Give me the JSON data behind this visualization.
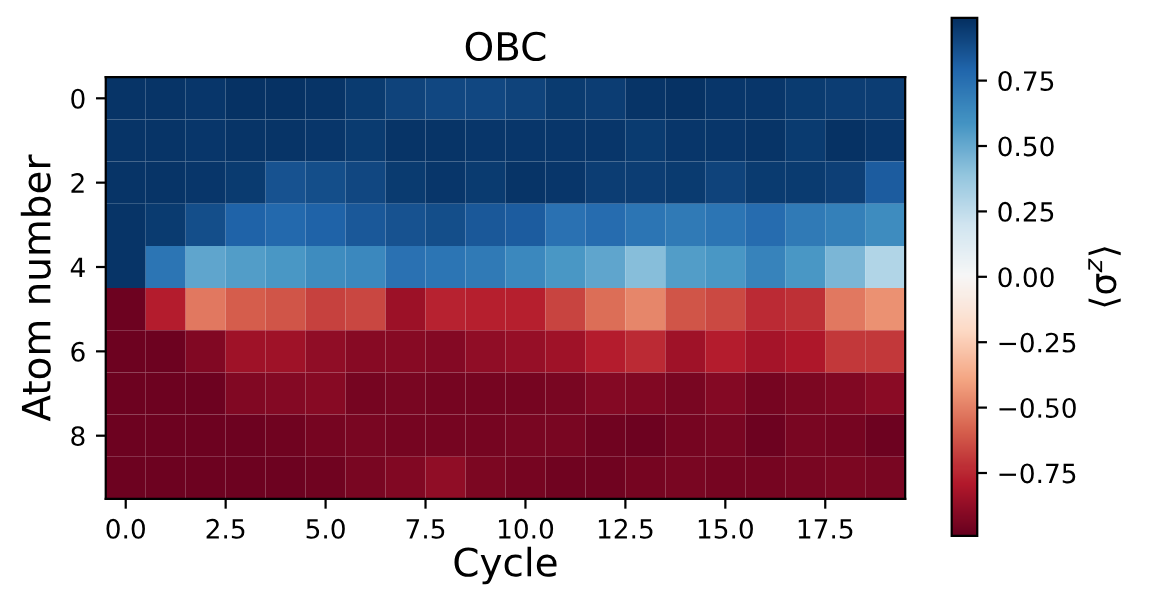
{
  "chart_data": {
    "type": "heatmap",
    "title": "OBC",
    "xlabel": "Cycle",
    "ylabel": "Atom number",
    "clabel": "⟨σ$^{z}$⟩",
    "x": [
      0,
      1,
      2,
      3,
      4,
      5,
      6,
      7,
      8,
      9,
      10,
      11,
      12,
      13,
      14,
      15,
      16,
      17,
      18,
      19
    ],
    "y": [
      0,
      1,
      2,
      3,
      4,
      5,
      6,
      7,
      8,
      9
    ],
    "xlim": [
      -0.5,
      19.5
    ],
    "ylim": [
      9.5,
      -0.5
    ],
    "xticks": [
      {
        "value": 0,
        "label": "0.0"
      },
      {
        "value": 2.5,
        "label": "2.5"
      },
      {
        "value": 5,
        "label": "5.0"
      },
      {
        "value": 7.5,
        "label": "7.5"
      },
      {
        "value": 10,
        "label": "10.0"
      },
      {
        "value": 12.5,
        "label": "12.5"
      },
      {
        "value": 15,
        "label": "15.0"
      },
      {
        "value": 17.5,
        "label": "17.5"
      }
    ],
    "yticks": [
      0,
      2,
      4,
      6,
      8
    ],
    "clim": [
      -0.99,
      0.99
    ],
    "cticks": [
      {
        "value": -0.75,
        "label": "−0.75"
      },
      {
        "value": -0.5,
        "label": "−0.50"
      },
      {
        "value": -0.25,
        "label": "−0.25"
      },
      {
        "value": 0,
        "label": "0.00"
      },
      {
        "value": 0.25,
        "label": "0.25"
      },
      {
        "value": 0.5,
        "label": "0.50"
      },
      {
        "value": 0.75,
        "label": "0.75"
      }
    ],
    "cells": [
      [
        0.97,
        0.97,
        0.96,
        0.98,
        0.98,
        0.97,
        0.95,
        0.92,
        0.9,
        0.9,
        0.92,
        0.95,
        0.94,
        0.97,
        0.98,
        0.96,
        0.96,
        0.95,
        0.94,
        0.94
      ],
      [
        0.97,
        0.97,
        0.96,
        0.97,
        0.97,
        0.96,
        0.95,
        0.97,
        0.97,
        0.96,
        0.96,
        0.96,
        0.96,
        0.95,
        0.96,
        0.96,
        0.97,
        0.95,
        0.98,
        0.96
      ],
      [
        0.97,
        0.97,
        0.96,
        0.95,
        0.86,
        0.88,
        0.9,
        0.95,
        0.96,
        0.95,
        0.97,
        0.96,
        0.94,
        0.94,
        0.95,
        0.92,
        0.95,
        0.95,
        0.93,
        0.82
      ],
      [
        0.97,
        0.95,
        0.88,
        0.8,
        0.78,
        0.8,
        0.84,
        0.86,
        0.88,
        0.84,
        0.82,
        0.74,
        0.76,
        0.72,
        0.7,
        0.72,
        0.76,
        0.7,
        0.68,
        0.62
      ],
      [
        0.97,
        0.72,
        0.52,
        0.55,
        0.58,
        0.62,
        0.64,
        0.74,
        0.72,
        0.7,
        0.64,
        0.58,
        0.52,
        0.42,
        0.55,
        0.58,
        0.66,
        0.58,
        0.45,
        0.3
      ],
      [
        -0.97,
        -0.78,
        -0.52,
        -0.6,
        -0.62,
        -0.68,
        -0.66,
        -0.85,
        -0.76,
        -0.77,
        -0.77,
        -0.67,
        -0.55,
        -0.48,
        -0.62,
        -0.65,
        -0.74,
        -0.72,
        -0.52,
        -0.45
      ],
      [
        -0.97,
        -0.97,
        -0.92,
        -0.84,
        -0.84,
        -0.88,
        -0.9,
        -0.9,
        -0.91,
        -0.88,
        -0.86,
        -0.84,
        -0.78,
        -0.74,
        -0.84,
        -0.78,
        -0.82,
        -0.8,
        -0.7,
        -0.7
      ],
      [
        -0.97,
        -0.97,
        -0.97,
        -0.92,
        -0.91,
        -0.9,
        -0.95,
        -0.94,
        -0.95,
        -0.95,
        -0.95,
        -0.94,
        -0.91,
        -0.92,
        -0.94,
        -0.91,
        -0.95,
        -0.93,
        -0.92,
        -0.89
      ],
      [
        -0.97,
        -0.97,
        -0.97,
        -0.97,
        -0.96,
        -0.95,
        -0.94,
        -0.95,
        -0.95,
        -0.95,
        -0.94,
        -0.94,
        -0.96,
        -0.97,
        -0.95,
        -0.94,
        -0.97,
        -0.94,
        -0.95,
        -0.97
      ],
      [
        -0.97,
        -0.97,
        -0.97,
        -0.97,
        -0.97,
        -0.96,
        -0.94,
        -0.92,
        -0.88,
        -0.93,
        -0.95,
        -0.96,
        -0.96,
        -0.95,
        -0.94,
        -0.95,
        -0.95,
        -0.94,
        -0.93,
        -0.94
      ]
    ]
  }
}
